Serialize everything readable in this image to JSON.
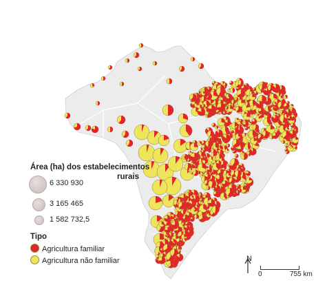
{
  "legend": {
    "area_title_line1": "Área (ha) dos estabelecimentos",
    "area_title_line2": "rurais",
    "sizes": [
      "6 330 930",
      "3 165 465",
      "1 582 732,5"
    ],
    "tipo_title": "Tipo",
    "tipo": [
      {
        "label": "Agricultura familiar",
        "color": "#e0262a"
      },
      {
        "label": "Agricultura não familiar",
        "color": "#eee55b"
      }
    ]
  },
  "north_label": "N",
  "scale": {
    "start": "0",
    "end": "755 km"
  },
  "colors": {
    "land": "#ececec",
    "border": "#ffffff",
    "familiar": "#e0262a",
    "nao_familiar": "#eee55b",
    "outline": "#8a7a3a"
  }
}
